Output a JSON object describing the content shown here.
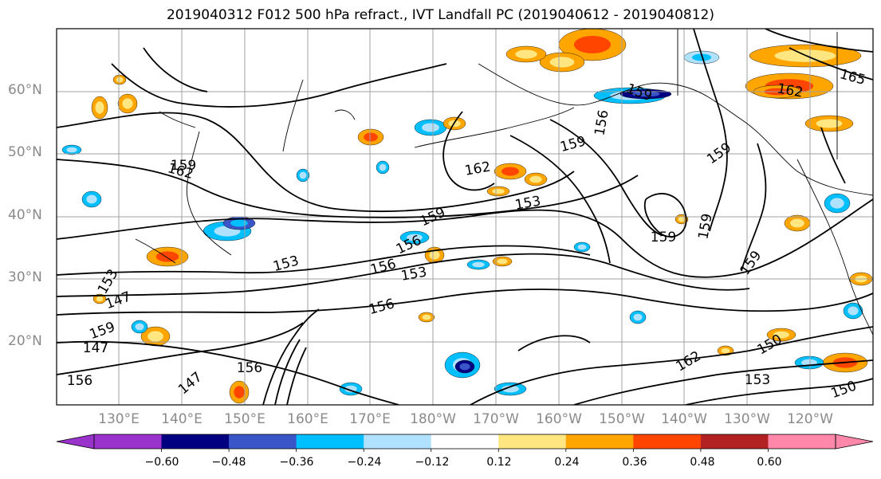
{
  "title": "2019040312 F012 500 hPa refract., IVT Landfall PC (2019040612 - 2019040812)",
  "latitude_labels": [
    "60°N",
    "50°N",
    "40°N",
    "30°N",
    "20°N"
  ],
  "longitude_labels": [
    "130°E",
    "140°E",
    "150°E",
    "160°E",
    "170°E",
    "180°W",
    "170°W",
    "160°W",
    "150°W",
    "140°W",
    "130°W",
    "120°W"
  ],
  "colorbar": {
    "tick_labels": [
      "−0.60",
      "−0.48",
      "−0.36",
      "−0.24",
      "−0.12",
      "0.12",
      "0.24",
      "0.36",
      "0.48",
      "0.60"
    ],
    "colors": [
      "#9933cc",
      "#000080",
      "#3a55c8",
      "#00bfff",
      "#b0e2ff",
      "#ffffff",
      "#ffe680",
      "#ffa500",
      "#ff4500",
      "#b22222",
      "#ff88aa"
    ]
  },
  "contour_labels": [
    "165",
    "162",
    "159",
    "162",
    "159",
    "156",
    "153",
    "162",
    "159",
    "159",
    "159",
    "156",
    "153",
    "159",
    "159",
    "156",
    "153",
    "156",
    "147",
    "153",
    "156",
    "159",
    "147",
    "156",
    "162",
    "150",
    "153",
    "150",
    "147",
    "159"
  ],
  "colors": {
    "contour": "#000000",
    "coast": "#000000",
    "grid": "#a0a0a0",
    "axis_label": "#8a8a8a"
  }
}
